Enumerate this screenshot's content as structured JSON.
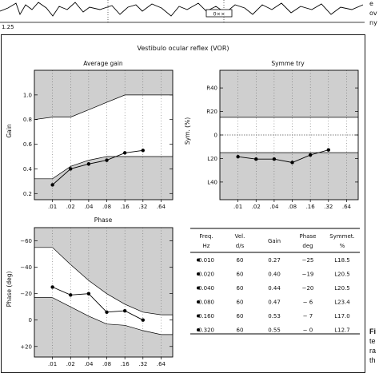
{
  "top_strip": {
    "axis_tick": "1.25",
    "marker": "0××",
    "side_text_right": [
      "e",
      "ov",
      "ny"
    ]
  },
  "caption_fragment": {
    "bold": "Fi",
    "lines": [
      "te",
      "ra",
      "th"
    ]
  },
  "chart_data": [
    {
      "type": "line",
      "title": "Vestibulo ocular reflex (VOR)",
      "subtitle": "Average gain",
      "ylabel": "Gain",
      "xlabel": "",
      "x_tick_labels": [
        ".01",
        ".02",
        ".04",
        ".08",
        ".16",
        ".32",
        ".64"
      ],
      "y_tick_labels": [
        "1.0",
        "0.8",
        "0.6",
        "0.4",
        "0.2"
      ],
      "ylim": [
        0.15,
        1.2
      ],
      "x_scale": "log2",
      "series": [
        {
          "values": [
            0.27,
            0.4,
            0.44,
            0.47,
            0.53,
            0.55
          ]
        }
      ],
      "x": [
        0.01,
        0.02,
        0.04,
        0.08,
        0.16,
        0.32
      ],
      "normal_band": {
        "x": [
          0.005,
          0.01,
          0.02,
          0.04,
          0.08,
          0.16,
          0.32,
          0.64,
          1.0
        ],
        "lower": [
          0.32,
          0.32,
          0.42,
          0.47,
          0.5,
          0.5,
          0.5,
          0.5,
          0.5
        ],
        "upper": [
          0.8,
          0.82,
          0.82,
          0.88,
          0.94,
          1.0,
          1.0,
          1.0,
          1.0
        ]
      },
      "grid": true
    },
    {
      "type": "line",
      "subtitle": "Symme try",
      "ylabel": "Sym. (%)",
      "x_tick_labels": [
        ".01",
        ".02",
        ".04",
        ".08",
        ".16",
        ".32",
        ".64"
      ],
      "y_tick_labels": [
        "R40",
        "R20",
        "0",
        "L20",
        "L40"
      ],
      "ylim": [
        -55,
        55
      ],
      "x_scale": "log2",
      "x": [
        0.01,
        0.02,
        0.04,
        0.08,
        0.16,
        0.32
      ],
      "series": [
        {
          "values": [
            -18.5,
            -20.5,
            -20.5,
            -23.4,
            -17.0,
            -12.7
          ]
        }
      ],
      "normal_band": {
        "lower": -15,
        "upper": 15
      },
      "zero_line": "dotted",
      "grid": true
    },
    {
      "type": "line",
      "subtitle": "Phase",
      "ylabel": "Phase (deg)",
      "x_tick_labels": [
        ".01",
        ".02",
        ".04",
        ".08",
        ".16",
        ".32",
        ".64"
      ],
      "y_tick_labels": [
        "−60",
        "−40",
        "−20",
        "0",
        "+20"
      ],
      "ylim": [
        -70,
        28
      ],
      "y_inverted": true,
      "x_scale": "log2",
      "x": [
        0.01,
        0.02,
        0.04,
        0.08,
        0.16,
        0.32
      ],
      "series": [
        {
          "values": [
            -25,
            -19,
            -20,
            -6,
            -7,
            0
          ]
        }
      ],
      "normal_band": {
        "x": [
          0.005,
          0.01,
          0.02,
          0.04,
          0.08,
          0.16,
          0.32,
          0.64,
          1.0
        ],
        "lower": [
          -55,
          -55,
          -42,
          -30,
          -20,
          -12,
          -6,
          -4,
          -4
        ],
        "upper": [
          -17,
          -17,
          -10,
          -3,
          3,
          4,
          8,
          11,
          11
        ]
      },
      "grid": true
    },
    {
      "type": "table",
      "columns": [
        {
          "name": "Freq.",
          "unit": "Hz"
        },
        {
          "name": "Vel.",
          "unit": "d/s"
        },
        {
          "name": "Gain",
          "unit": ""
        },
        {
          "name": "Phase",
          "unit": "deg"
        },
        {
          "name": "Symmet.",
          "unit": "%"
        }
      ],
      "rows": [
        [
          "0.010",
          "60",
          "0.27",
          "−25",
          "L18.5"
        ],
        [
          "0.020",
          "60",
          "0.40",
          "−19",
          "L20.5"
        ],
        [
          "0.040",
          "60",
          "0.44",
          "−20",
          "L20.5"
        ],
        [
          "0.080",
          "60",
          "0.47",
          "− 6",
          "L23.4"
        ],
        [
          "0.160",
          "60",
          "0.53",
          "− 7",
          "L17.0"
        ],
        [
          "0.320",
          "60",
          "0.55",
          "− 0",
          "L12.7"
        ]
      ]
    }
  ]
}
